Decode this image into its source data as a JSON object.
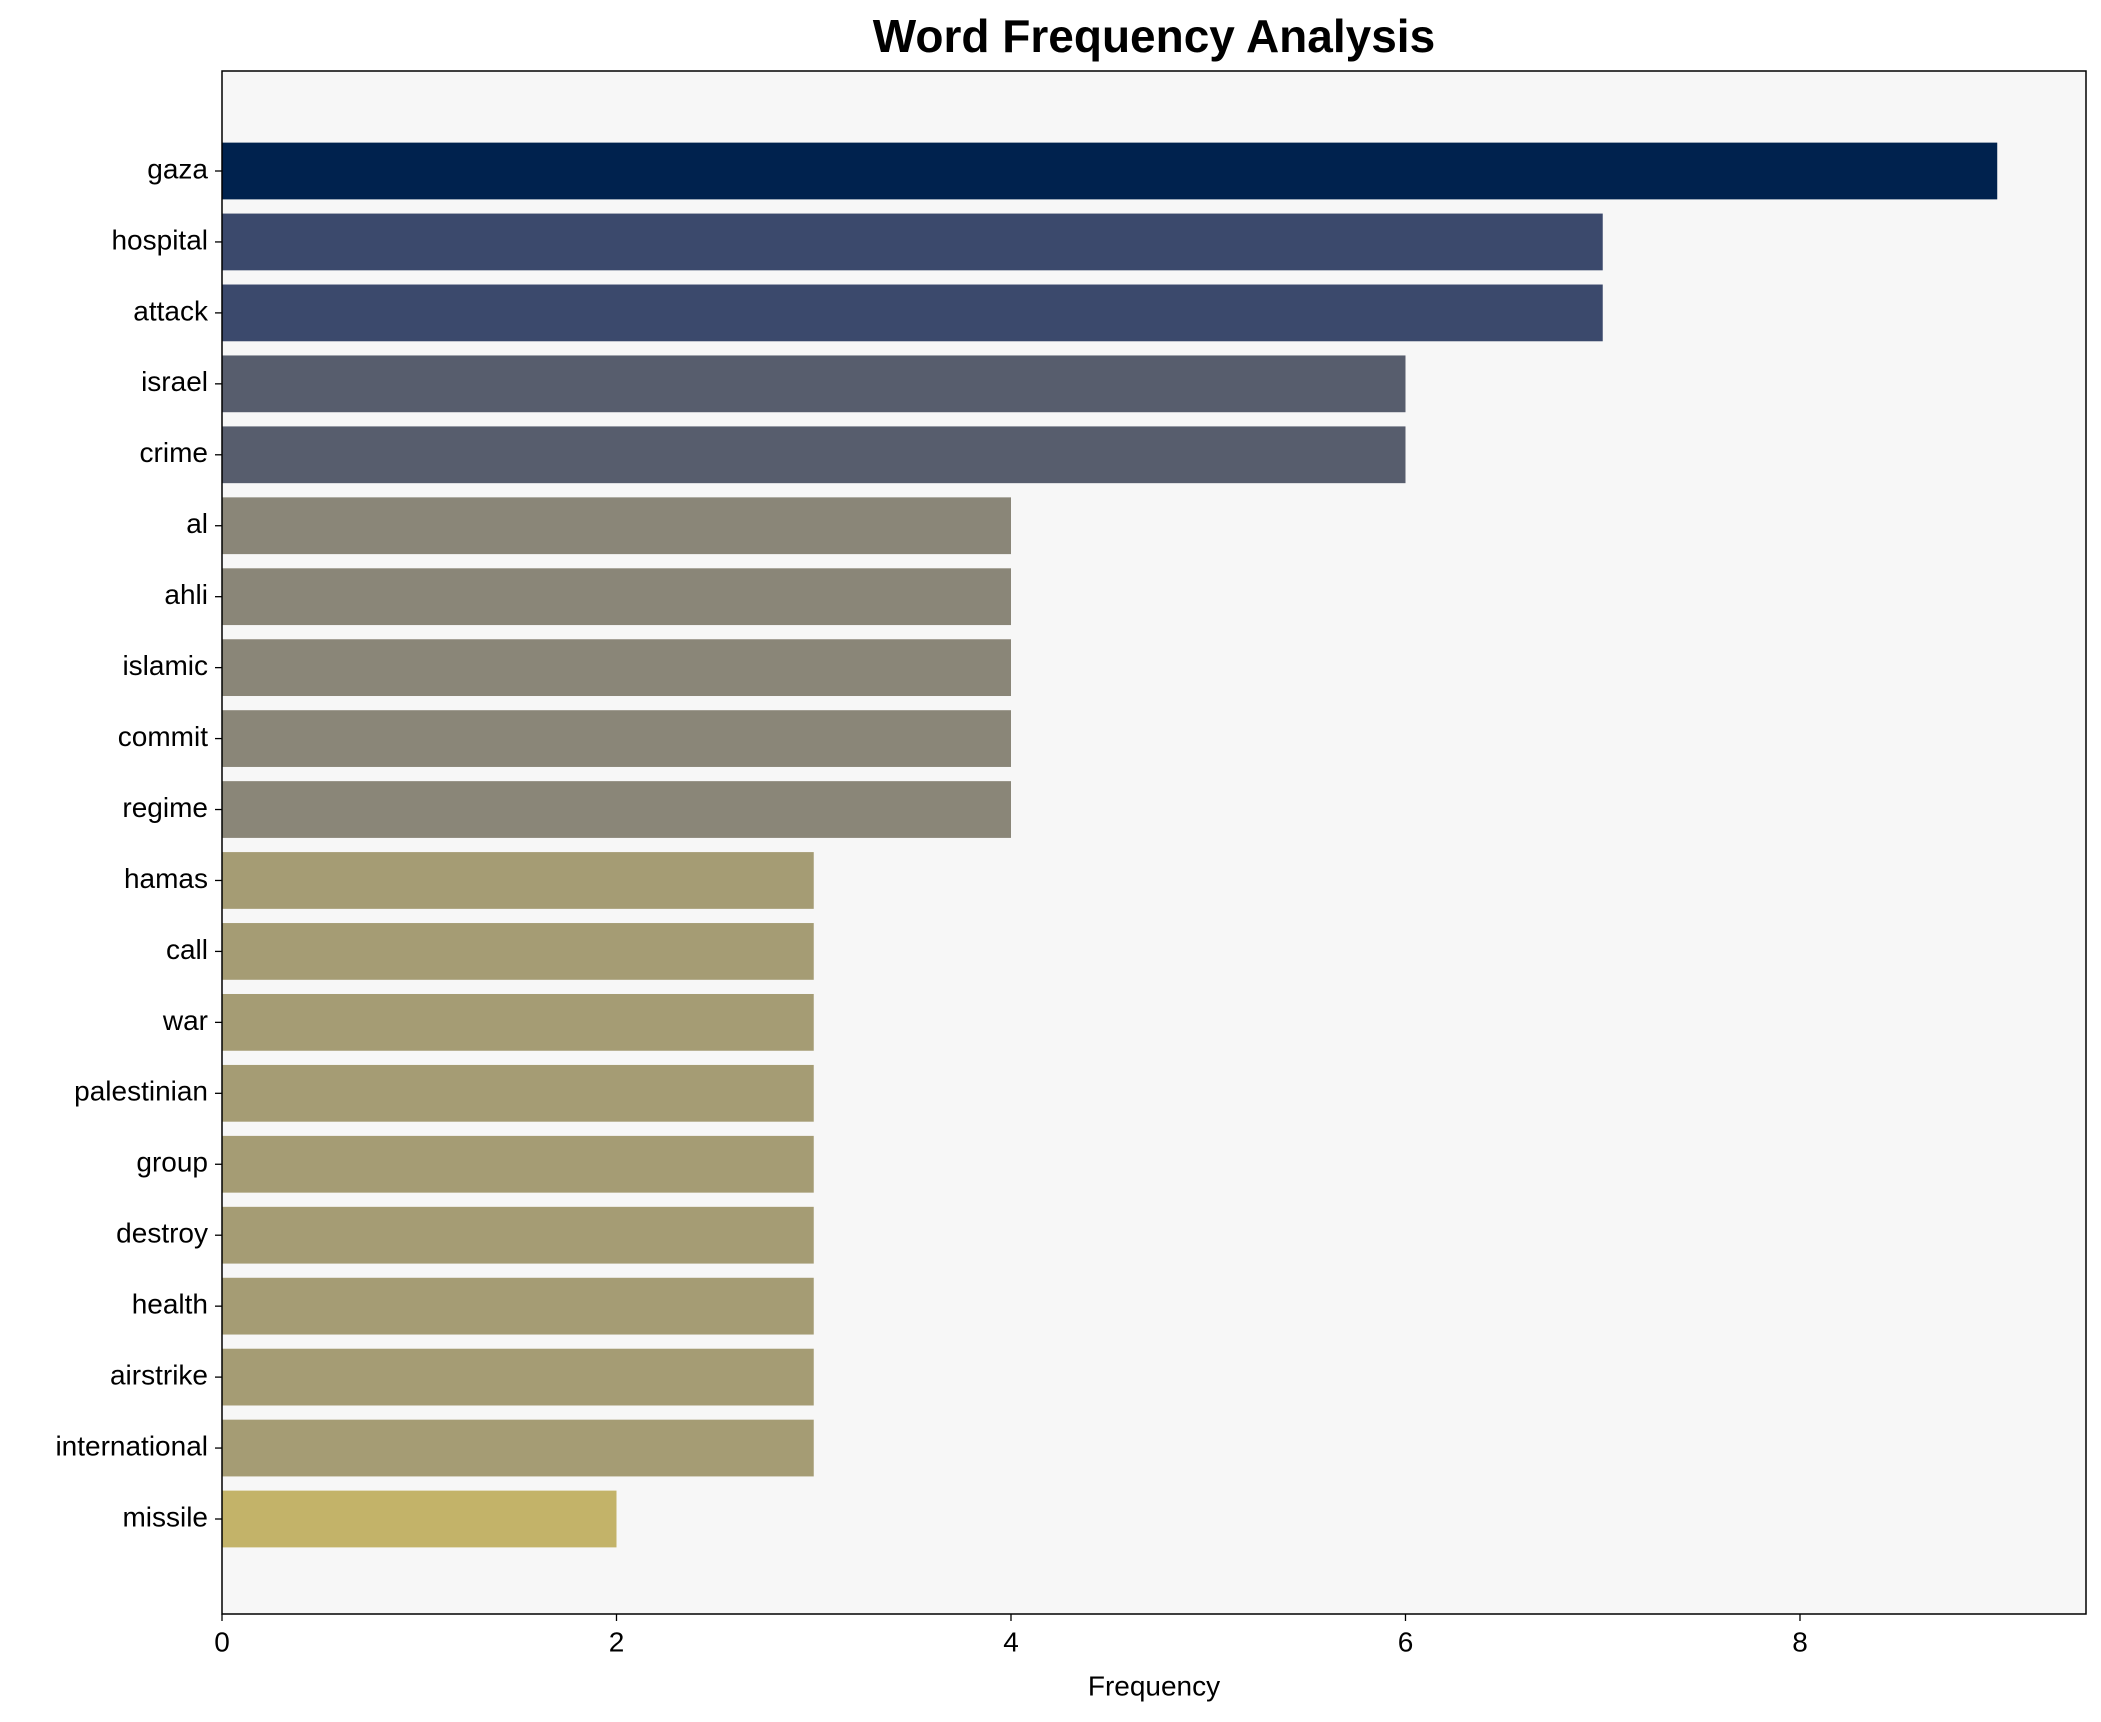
{
  "chart_data": {
    "type": "barh",
    "title": "Word Frequency Analysis",
    "x_label": "Frequency",
    "categories": [
      "gaza",
      "hospital",
      "attack",
      "israel",
      "crime",
      "al",
      "ahli",
      "islamic",
      "commit",
      "regime",
      "hamas",
      "call",
      "war",
      "palestinian",
      "group",
      "destroy",
      "health",
      "airstrike",
      "international",
      "missile"
    ],
    "values": [
      9,
      7,
      7,
      6,
      6,
      4,
      4,
      4,
      4,
      4,
      3,
      3,
      3,
      3,
      3,
      3,
      3,
      3,
      3,
      2
    ],
    "colors": [
      "#00224e",
      "#3b496c",
      "#3b496c",
      "#575d6d",
      "#575d6d",
      "#8a8678",
      "#8a8678",
      "#8a8678",
      "#8a8678",
      "#8a8678",
      "#a59c74",
      "#a59c74",
      "#a59c74",
      "#a59c74",
      "#a59c74",
      "#a59c74",
      "#a59c74",
      "#a59c74",
      "#a59c74",
      "#c3b369"
    ],
    "xlim": [
      0,
      9.45
    ],
    "xticks": [
      0,
      2,
      4,
      6,
      8
    ],
    "grid": false
  }
}
